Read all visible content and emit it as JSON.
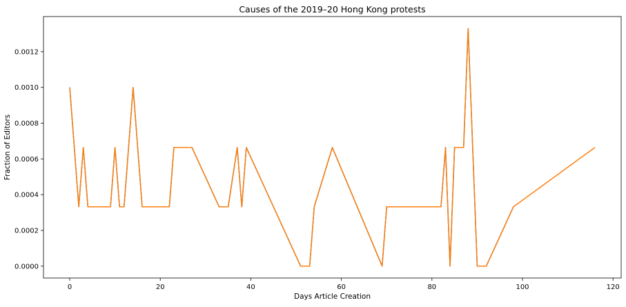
{
  "chart_data": {
    "type": "line",
    "title": "Causes of the 2019–20 Hong Kong protests",
    "xlabel": "Days Article Creation",
    "ylabel": "Fraction of Editors",
    "xlim": [
      -5.8,
      121.8
    ],
    "ylim": [
      -6.65e-05,
      0.0013965
    ],
    "xticks": [
      0,
      20,
      40,
      60,
      80,
      100,
      120
    ],
    "yticks": [
      0.0,
      0.0002,
      0.0004,
      0.0006,
      0.0008,
      0.001,
      0.0012
    ],
    "xtick_labels": [
      "0",
      "20",
      "40",
      "60",
      "80",
      "100",
      "120"
    ],
    "ytick_labels": [
      "0.0000",
      "0.0002",
      "0.0004",
      "0.0006",
      "0.0008",
      "0.0010",
      "0.0012"
    ],
    "grid": false,
    "series": [
      {
        "color": "#1f77b4",
        "x": [
          0,
          2,
          3,
          4,
          9,
          10,
          11,
          12,
          14,
          16,
          22,
          23,
          27,
          33,
          35,
          37,
          38,
          39,
          51,
          53,
          54,
          58,
          69,
          70,
          82,
          83,
          84,
          85,
          87,
          88,
          90,
          92,
          98
        ],
        "y": [
          0.001,
          0.000332,
          0.000664,
          0.000332,
          0.000332,
          0.000664,
          0.000332,
          0.000332,
          0.001,
          0.000332,
          0.000332,
          0.000664,
          0.000664,
          0.000332,
          0.000332,
          0.000664,
          0.000332,
          0.000664,
          0.0,
          0.0,
          0.000332,
          0.000664,
          0.0,
          0.000332,
          0.000332,
          0.000664,
          0.0,
          0.000664,
          0.000664,
          0.00133,
          0.0,
          0.0,
          0.000332
        ]
      },
      {
        "color": "#ff7f0e",
        "x": [
          0,
          2,
          3,
          4,
          9,
          10,
          11,
          12,
          14,
          16,
          22,
          23,
          27,
          33,
          35,
          37,
          38,
          39,
          51,
          53,
          54,
          58,
          69,
          70,
          82,
          83,
          84,
          85,
          87,
          88,
          90,
          92,
          98,
          116
        ],
        "y": [
          0.001,
          0.000332,
          0.000664,
          0.000332,
          0.000332,
          0.000664,
          0.000332,
          0.000332,
          0.001,
          0.000332,
          0.000332,
          0.000664,
          0.000664,
          0.000332,
          0.000332,
          0.000664,
          0.000332,
          0.000664,
          0.0,
          0.0,
          0.000332,
          0.000664,
          0.0,
          0.000332,
          0.000332,
          0.000664,
          0.0,
          0.000664,
          0.000664,
          0.00133,
          0.0,
          0.0,
          0.000332,
          0.000664
        ]
      }
    ]
  }
}
